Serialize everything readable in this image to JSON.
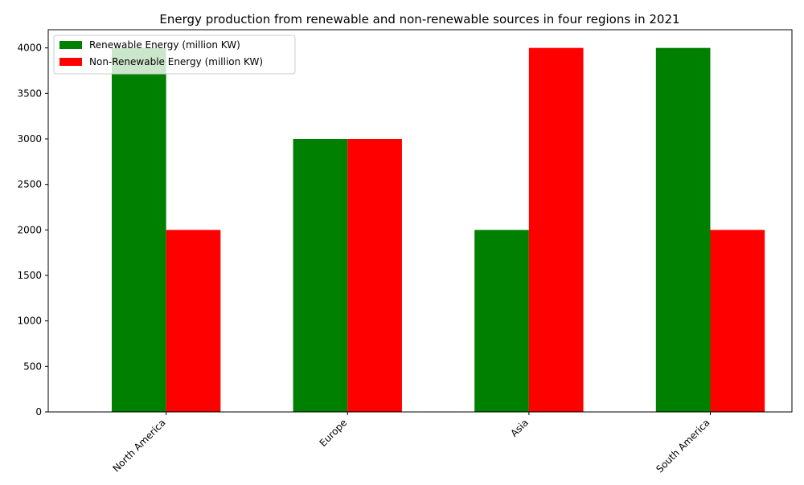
{
  "chart_data": {
    "type": "bar",
    "title": "Energy production from renewable and non-renewable sources in four regions in 2021",
    "xlabel": "",
    "ylabel": "",
    "categories": [
      "North America",
      "Europe",
      "Asia",
      "South America"
    ],
    "series": [
      {
        "name": "Renewable Energy (million KW)",
        "values": [
          4000,
          3000,
          2000,
          4000
        ],
        "color": "#008000"
      },
      {
        "name": "Non-Renewable Energy (million KW)",
        "values": [
          2000,
          3000,
          4000,
          2000
        ],
        "color": "#ff0000"
      }
    ],
    "ylim": [
      0,
      4200
    ],
    "yticks": [
      0,
      500,
      1000,
      1500,
      2000,
      2500,
      3000,
      3500,
      4000
    ],
    "grid": false,
    "legend_position": "top-left",
    "x_tick_rotation": 45
  }
}
